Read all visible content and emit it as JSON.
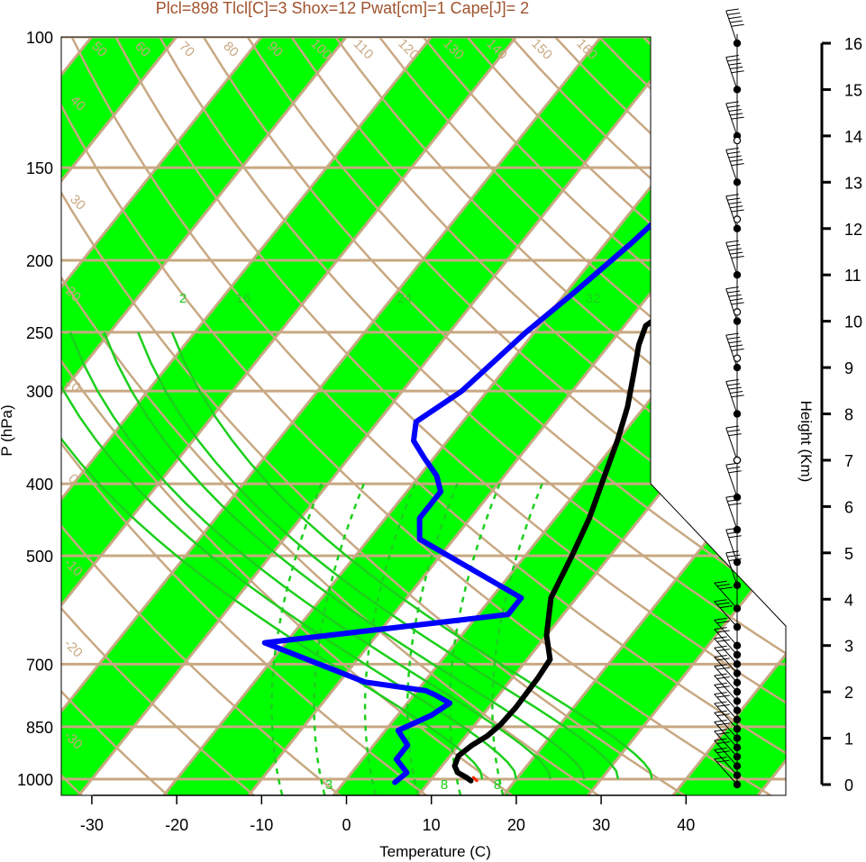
{
  "title": "Plcl=898 Tlcl[C]=3 Shox=12 Pwat[cm]=1 Cape[J]= 2",
  "colors": {
    "band_green": "#00ff00",
    "isotherm_tan": "#c8a882",
    "mixing_ratio_green": "#1ccf1c",
    "temperature_black": "#000000",
    "dewpoint_blue": "#0000ff",
    "parcel_red": "#ff2200",
    "title_brown": "#a0522d"
  },
  "chart_data": {
    "type": "line",
    "subtype": "skew-T log-P diagram",
    "xlabel": "Temperature (C)",
    "ylabel": "P (hPa)",
    "y2label": "Height (Km)",
    "x_ticks": [
      "-30",
      "-20",
      "-10",
      "0",
      "10",
      "20",
      "30",
      "40"
    ],
    "x_tick_values": [
      -30,
      -20,
      -10,
      0,
      10,
      20,
      30,
      40
    ],
    "y_ticks": [
      "100",
      "150",
      "200",
      "250",
      "300",
      "400",
      "500",
      "700",
      "850",
      "1000"
    ],
    "y_tick_values": [
      100,
      150,
      200,
      250,
      300,
      400,
      500,
      700,
      850,
      1000
    ],
    "height_ticks": [
      "0",
      "1",
      "2",
      "3",
      "4",
      "5",
      "6",
      "7",
      "8",
      "9",
      "10",
      "11",
      "12",
      "13",
      "14",
      "15",
      "16"
    ],
    "xlim": [
      -33.8,
      52
    ],
    "ylim": [
      1050,
      100
    ],
    "y_scale": "log",
    "grid": true,
    "series": [
      {
        "x": [
          14.8,
          14,
          12.5,
          11.5,
          11,
          11.6,
          12.5,
          13,
          13.2,
          13,
          12.7,
          10,
          7,
          5.5,
          4,
          2,
          0,
          -2,
          -4.5,
          -6.5,
          -7.5,
          -5.5,
          -2,
          1.5,
          3.5,
          5.5,
          8,
          10,
          11.5,
          12.5,
          13.5,
          14.2
        ],
        "y": [
          1005,
          995,
          980,
          960,
          930,
          900,
          875,
          845,
          800,
          730,
          690,
          640,
          570,
          500,
          445,
          395,
          350,
          315,
          283,
          260,
          245,
          225,
          200,
          180,
          168,
          155,
          140,
          130,
          123,
          115,
          110,
          102
        ]
      },
      {
        "x": [
          6,
          6.5,
          4,
          4,
          1.5,
          4,
          5,
          2.5,
          1,
          -7,
          -22.5,
          3.5,
          3.5,
          -14,
          -16,
          -16,
          -18,
          -21,
          -24,
          -25.5,
          -23,
          -21,
          -19,
          -17,
          -15.5,
          -16,
          -16,
          -14,
          -11,
          -8,
          -5
        ],
        "y": [
          1010,
          980,
          940,
          900,
          860,
          820,
          790,
          770,
          760,
          740,
          655,
          600,
          570,
          475,
          445,
          410,
          390,
          370,
          350,
          330,
          300,
          250,
          220,
          190,
          165,
          150,
          140,
          132,
          122,
          112,
          101
        ]
      },
      {
        "x": [
          14.8,
          15.5
        ],
        "y": [
          995,
          1005
        ]
      }
    ],
    "isotherm_labels": [
      "50",
      "60",
      "70",
      "80",
      "90",
      "100",
      "110",
      "120",
      "130",
      "140",
      "150",
      "160",
      "40",
      "30",
      "30",
      "20",
      "10",
      "0",
      "10",
      "20",
      "30",
      "20",
      "10",
      "0",
      "-10",
      "-20",
      "-30"
    ],
    "mixing_ratio_labels": [
      "16",
      "24",
      "32",
      "8",
      "2",
      "3",
      "8"
    ],
    "wind_barbs": {
      "heights_km": [
        0,
        0.2,
        0.4,
        0.6,
        0.8,
        1.0,
        1.2,
        1.4,
        1.6,
        1.8,
        2.0,
        2.2,
        2.4,
        2.6,
        2.8,
        3.0,
        3.4,
        3.8,
        4.3,
        4.8,
        5.5,
        6.2,
        7.0,
        8.0,
        9.0,
        10.0,
        11.0,
        12.0,
        13.0,
        14.0,
        15.0,
        16.0
      ]
    }
  }
}
